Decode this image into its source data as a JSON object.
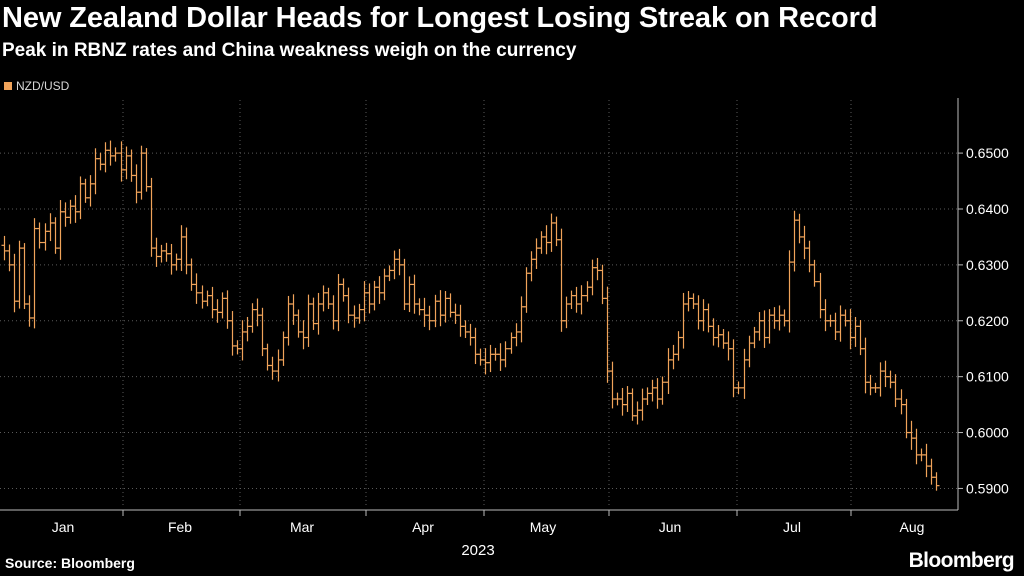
{
  "chart_data": {
    "type": "ohlc",
    "title": "New Zealand Dollar Heads for Longest Losing Streak on Record",
    "subtitle": "Peak in RBNZ rates and China weakness weigh on the currency",
    "series_name": "NZD/USD",
    "color": "#f0a35a",
    "x_tick_labels": [
      "Jan",
      "Feb",
      "Mar",
      "Apr",
      "May",
      "Jun",
      "Jul",
      "Aug"
    ],
    "x_axis_year": "2023",
    "y_ticks": [
      0.59,
      0.6,
      0.61,
      0.62,
      0.63,
      0.64,
      0.65
    ],
    "y_tick_labels": [
      "0.5900",
      "0.6000",
      "0.6100",
      "0.6200",
      "0.6300",
      "0.6400",
      "0.6500"
    ],
    "ylim": [
      0.5865,
      0.6595
    ],
    "daily_close": [
      0.6325,
      0.63,
      0.6235,
      0.633,
      0.623,
      0.6205,
      0.6365,
      0.634,
      0.636,
      0.6375,
      0.633,
      0.6395,
      0.6385,
      0.6405,
      0.6395,
      0.6445,
      0.642,
      0.6445,
      0.649,
      0.648,
      0.6505,
      0.6495,
      0.65,
      0.647,
      0.6495,
      0.646,
      0.643,
      0.65,
      0.644,
      0.633,
      0.6315,
      0.6325,
      0.632,
      0.63,
      0.631,
      0.635,
      0.63,
      0.6265,
      0.625,
      0.6235,
      0.6245,
      0.622,
      0.6215,
      0.624,
      0.62,
      0.6155,
      0.615,
      0.618,
      0.619,
      0.622,
      0.621,
      0.615,
      0.612,
      0.611,
      0.613,
      0.617,
      0.623,
      0.621,
      0.618,
      0.617,
      0.623,
      0.6195,
      0.623,
      0.625,
      0.623,
      0.62,
      0.6265,
      0.6245,
      0.621,
      0.6205,
      0.622,
      0.625,
      0.623,
      0.626,
      0.625,
      0.628,
      0.629,
      0.631,
      0.63,
      0.623,
      0.6265,
      0.623,
      0.622,
      0.621,
      0.62,
      0.6235,
      0.621,
      0.624,
      0.6215,
      0.621,
      0.619,
      0.618,
      0.617,
      0.614,
      0.613,
      0.6125,
      0.614,
      0.614,
      0.613,
      0.615,
      0.617,
      0.618,
      0.6225,
      0.6285,
      0.631,
      0.633,
      0.635,
      0.634,
      0.6375,
      0.6345,
      0.62,
      0.623,
      0.6245,
      0.623,
      0.6245,
      0.626,
      0.6295,
      0.629,
      0.624,
      0.611,
      0.606,
      0.606,
      0.605,
      0.607,
      0.603,
      0.604,
      0.606,
      0.607,
      0.608,
      0.606,
      0.609,
      0.613,
      0.614,
      0.617,
      0.623,
      0.624,
      0.623,
      0.62,
      0.622,
      0.619,
      0.617,
      0.6175,
      0.616,
      0.615,
      0.608,
      0.608,
      0.613,
      0.616,
      0.618,
      0.62,
      0.617,
      0.621,
      0.62,
      0.621,
      0.62,
      0.6305,
      0.638,
      0.635,
      0.633,
      0.63,
      0.627,
      0.622,
      0.62,
      0.62,
      0.618,
      0.621,
      0.62,
      0.617,
      0.619,
      0.615,
      0.609,
      0.608,
      0.608,
      0.611,
      0.61,
      0.609,
      0.606,
      0.605,
      0.6,
      0.599,
      0.596,
      0.596,
      0.594,
      0.592,
      0.5905
    ]
  },
  "legend": {
    "label": "NZD/USD"
  },
  "footer": {
    "source": "Source: Bloomberg",
    "brand": "Bloomberg"
  }
}
